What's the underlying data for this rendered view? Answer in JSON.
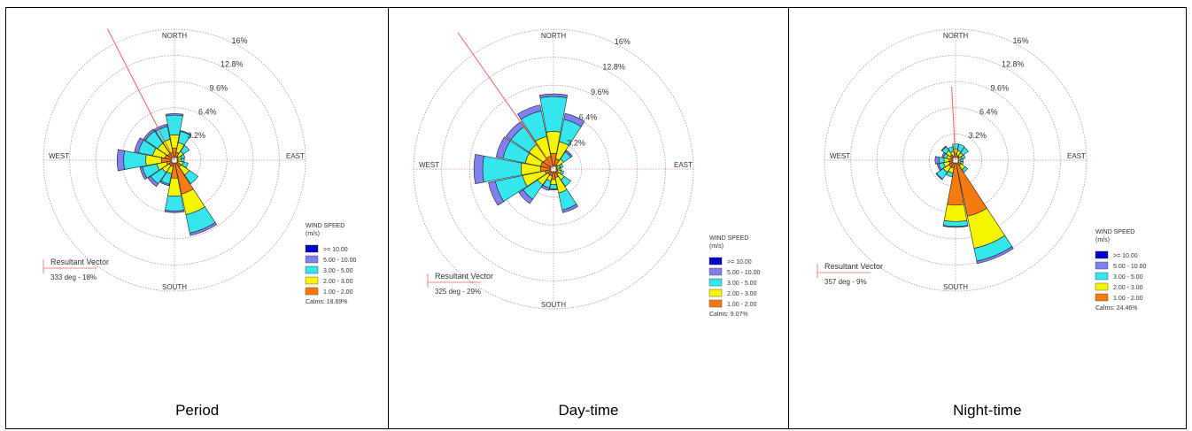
{
  "colors": {
    "bin_ge10": "#0000c8",
    "bin_5_10": "#8080ee",
    "bin_3_5": "#35e6ee",
    "bin_2_3": "#f5f500",
    "bin_1_2": "#f57a10",
    "vector": "#e86060",
    "grid": "#9a9aa8"
  },
  "chart_data": [
    {
      "type": "wind-rose",
      "caption": "Period",
      "directions": [
        "N",
        "NNE",
        "NE",
        "ENE",
        "E",
        "ESE",
        "SE",
        "SSE",
        "S",
        "SSW",
        "SW",
        "WSW",
        "W",
        "WNW",
        "NW",
        "NNW"
      ],
      "compass_labels": {
        "north": "NORTH",
        "east": "EAST",
        "south": "SOUTH",
        "west": "WEST"
      },
      "ring_values": [
        3.2,
        6.4,
        9.6,
        12.8,
        16
      ],
      "ring_labels": [
        "3.2%",
        "6.4%",
        "9.6%",
        "12.8%",
        "16%"
      ],
      "r_max_percent": 16,
      "legend_title": [
        "WIND SPEED",
        "(m/s)"
      ],
      "legend_items": [
        ">= 10.00",
        "5.00 - 10.00",
        "3.00 - 5.00",
        "2.00 - 3.00",
        "1.00 - 2.00"
      ],
      "bins_order": [
        "1.00 - 2.00",
        "2.00 - 3.00",
        "3.00 - 5.00",
        "5.00 - 10.00",
        ">= 10.00"
      ],
      "frequencies": [
        [
          1.5,
          1.6,
          2.4,
          0.2,
          0
        ],
        [
          1.0,
          1.2,
          1.4,
          0.1,
          0
        ],
        [
          0.6,
          0.7,
          0.9,
          0,
          0
        ],
        [
          0.4,
          0.5,
          0.4,
          0,
          0
        ],
        [
          0.4,
          0.4,
          0.4,
          0,
          0
        ],
        [
          0.5,
          0.6,
          0.6,
          0,
          0
        ],
        [
          1.0,
          1.2,
          1.3,
          0,
          0
        ],
        [
          4.2,
          2.6,
          2.3,
          0.3,
          0
        ],
        [
          2.2,
          2.2,
          1.8,
          0.2,
          0
        ],
        [
          0.8,
          0.9,
          1.3,
          0.2,
          0
        ],
        [
          0.8,
          1.0,
          1.7,
          0.4,
          0
        ],
        [
          1.0,
          1.2,
          1.8,
          0.3,
          0
        ],
        [
          1.6,
          1.9,
          2.7,
          0.8,
          0
        ],
        [
          1.2,
          1.5,
          1.8,
          0.5,
          0
        ],
        [
          1.0,
          1.5,
          1.8,
          0.3,
          0
        ],
        [
          1.0,
          1.6,
          1.6,
          0.3,
          0
        ]
      ],
      "resultant": {
        "label": "Resultant Vector",
        "value": "333 deg - 18%",
        "direction_deg": 333,
        "magnitude_percent": 18
      },
      "calms": "Calms: 18.69%"
    },
    {
      "type": "wind-rose",
      "caption": "Day-time",
      "directions": [
        "N",
        "NNE",
        "NE",
        "ENE",
        "E",
        "ESE",
        "SE",
        "SSE",
        "S",
        "SSW",
        "SW",
        "WSW",
        "W",
        "WNW",
        "NW",
        "NNW"
      ],
      "compass_labels": {
        "north": "NORTH",
        "east": "EAST",
        "south": "SOUTH",
        "west": "WEST"
      },
      "ring_values": [
        3.2,
        6.4,
        9.6,
        12.8,
        16
      ],
      "ring_labels": [
        "3.2%",
        "6.4%",
        "9.6%",
        "12.8%",
        "16%"
      ],
      "r_max_percent": 16,
      "legend_title": [
        "WIND SPEED",
        "(m/s)"
      ],
      "legend_items": [
        ">= 10.00",
        "5.00 - 10.00",
        "3.00 - 5.00",
        "2.00 - 3.00",
        "1.00 - 2.00"
      ],
      "bins_order": [
        "1.00 - 2.00",
        "2.00 - 3.00",
        "3.00 - 5.00",
        "5.00 - 10.00",
        ">= 10.00"
      ],
      "frequencies": [
        [
          1.8,
          2.5,
          4.0,
          0.3,
          0
        ],
        [
          1.2,
          2.0,
          2.6,
          0.7,
          0
        ],
        [
          0.6,
          0.8,
          1.0,
          0.2,
          0
        ],
        [
          0.4,
          0.4,
          0.3,
          0,
          0
        ],
        [
          0.4,
          0.3,
          0.2,
          0,
          0
        ],
        [
          0.5,
          0.4,
          0.3,
          0,
          0
        ],
        [
          0.7,
          0.8,
          0.9,
          0,
          0
        ],
        [
          1.0,
          1.8,
          2.0,
          0.3,
          0
        ],
        [
          1.2,
          0.6,
          0.5,
          0.1,
          0
        ],
        [
          0.8,
          0.6,
          0.8,
          0.3,
          0
        ],
        [
          0.8,
          1.4,
          2.0,
          0.6,
          0
        ],
        [
          1.0,
          2.6,
          3.2,
          0.8,
          0
        ],
        [
          1.5,
          2.2,
          4.4,
          1.0,
          0
        ],
        [
          1.5,
          1.8,
          2.6,
          0.8,
          0
        ],
        [
          1.4,
          2.0,
          2.5,
          0.7,
          0
        ],
        [
          1.5,
          2.3,
          3.0,
          0.7,
          0
        ]
      ],
      "resultant": {
        "label": "Resultant Vector",
        "value": "325 deg - 29%",
        "direction_deg": 325,
        "magnitude_percent": 29
      },
      "calms": "Calms: 9.07%"
    },
    {
      "type": "wind-rose",
      "caption": "Night-time",
      "directions": [
        "N",
        "NNE",
        "NE",
        "ENE",
        "E",
        "ESE",
        "SE",
        "SSE",
        "S",
        "SSW",
        "SW",
        "WSW",
        "W",
        "WNW",
        "NW",
        "NNW"
      ],
      "compass_labels": {
        "north": "NORTH",
        "east": "EAST",
        "south": "SOUTH",
        "west": "WEST"
      },
      "ring_values": [
        3.2,
        6.4,
        9.6,
        12.8,
        16
      ],
      "ring_labels": [
        "3.2%",
        "6.4%",
        "9.6%",
        "12.8%",
        "16%"
      ],
      "r_max_percent": 16,
      "legend_title": [
        "WIND SPEED",
        "(m/s)"
      ],
      "legend_items": [
        ">= 10.00",
        "5.00 - 10.00",
        "3.00 - 5.00",
        "2.00 - 3.00",
        "1.00 - 2.00"
      ],
      "bins_order": [
        "1.00 - 2.00",
        "2.00 - 3.00",
        "3.00 - 5.00",
        "5.00 - 10.00",
        ">= 10.00"
      ],
      "frequencies": [
        [
          0.8,
          0.6,
          0.6,
          0,
          0
        ],
        [
          0.6,
          0.6,
          0.8,
          0,
          0
        ],
        [
          0.6,
          0.5,
          0.8,
          0,
          0
        ],
        [
          0.4,
          0.4,
          0.4,
          0,
          0
        ],
        [
          0.3,
          0.3,
          0.3,
          0,
          0
        ],
        [
          0.4,
          0.3,
          0.3,
          0,
          0
        ],
        [
          0.8,
          0.6,
          0.4,
          0,
          0
        ],
        [
          7.0,
          4.0,
          1.6,
          0.3,
          0
        ],
        [
          5.5,
          2.0,
          0.6,
          0.1,
          0
        ],
        [
          1.0,
          0.6,
          0.5,
          0,
          0
        ],
        [
          1.0,
          0.8,
          1.0,
          0.1,
          0
        ],
        [
          0.8,
          0.7,
          0.6,
          0.2,
          0
        ],
        [
          0.8,
          0.6,
          0.6,
          0.5,
          0
        ],
        [
          0.6,
          0.5,
          0.4,
          0.2,
          0
        ],
        [
          0.8,
          0.6,
          0.6,
          0.1,
          0
        ],
        [
          0.6,
          0.5,
          0.6,
          0,
          0
        ]
      ],
      "resultant": {
        "label": "Resultant Vector",
        "value": "357 deg - 9%",
        "direction_deg": 357,
        "magnitude_percent": 9
      },
      "calms": "Calms: 24.46%"
    }
  ]
}
